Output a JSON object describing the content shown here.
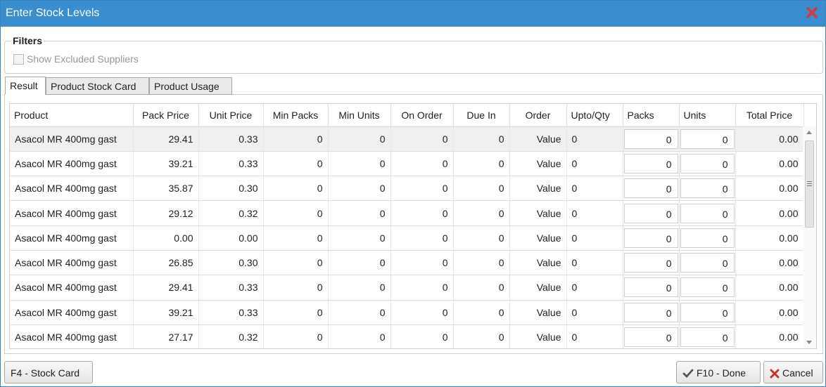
{
  "window": {
    "title": "Enter Stock Levels"
  },
  "filters": {
    "legend": "Filters",
    "show_excluded_label": "Show Excluded Suppliers"
  },
  "tabs": [
    {
      "label": "Result"
    },
    {
      "label": "Product Stock Card"
    },
    {
      "label": "Product Usage"
    }
  ],
  "grid": {
    "columns": [
      "Product",
      "Pack Price",
      "Unit Price",
      "Min Packs",
      "Min Units",
      "On Order",
      "Due In",
      "Order",
      "Upto/Qty",
      "Packs",
      "Units",
      "Total Price"
    ],
    "rows": [
      [
        "Asacol MR 400mg gast",
        "29.41",
        "0.33",
        "0",
        "0",
        "0",
        "0",
        "Value",
        "0",
        "0",
        "0",
        "0.00"
      ],
      [
        "Asacol MR 400mg gast",
        "39.21",
        "0.33",
        "0",
        "0",
        "0",
        "0",
        "Value",
        "0",
        "0",
        "0",
        "0.00"
      ],
      [
        "Asacol MR 400mg gast",
        "35.87",
        "0.30",
        "0",
        "0",
        "0",
        "0",
        "Value",
        "0",
        "0",
        "0",
        "0.00"
      ],
      [
        "Asacol MR 400mg gast",
        "29.12",
        "0.32",
        "0",
        "0",
        "0",
        "0",
        "Value",
        "0",
        "0",
        "0",
        "0.00"
      ],
      [
        "Asacol MR 400mg gast",
        "0.00",
        "0.00",
        "0",
        "0",
        "0",
        "0",
        "Value",
        "0",
        "0",
        "0",
        "0.00"
      ],
      [
        "Asacol MR 400mg gast",
        "26.85",
        "0.30",
        "0",
        "0",
        "0",
        "0",
        "Value",
        "0",
        "0",
        "0",
        "0.00"
      ],
      [
        "Asacol MR 400mg gast",
        "29.41",
        "0.33",
        "0",
        "0",
        "0",
        "0",
        "Value",
        "0",
        "0",
        "0",
        "0.00"
      ],
      [
        "Asacol MR 400mg gast",
        "39.21",
        "0.33",
        "0",
        "0",
        "0",
        "0",
        "Value",
        "0",
        "0",
        "0",
        "0.00"
      ],
      [
        "Asacol MR 400mg gast",
        "27.17",
        "0.32",
        "0",
        "0",
        "0",
        "0",
        "Value",
        "0",
        "0",
        "0",
        "0.00"
      ]
    ]
  },
  "buttons": {
    "stock_card": "F4 - Stock Card",
    "done": "F10 - Done",
    "cancel": "Cancel"
  },
  "icons": {
    "close": "close-icon",
    "done": "check-icon",
    "cancel": "x-icon"
  },
  "colors": {
    "titlebar": "#3a8dcf",
    "close": "#d9363e",
    "check": "#555555",
    "cancel_x": "#c9302c"
  }
}
